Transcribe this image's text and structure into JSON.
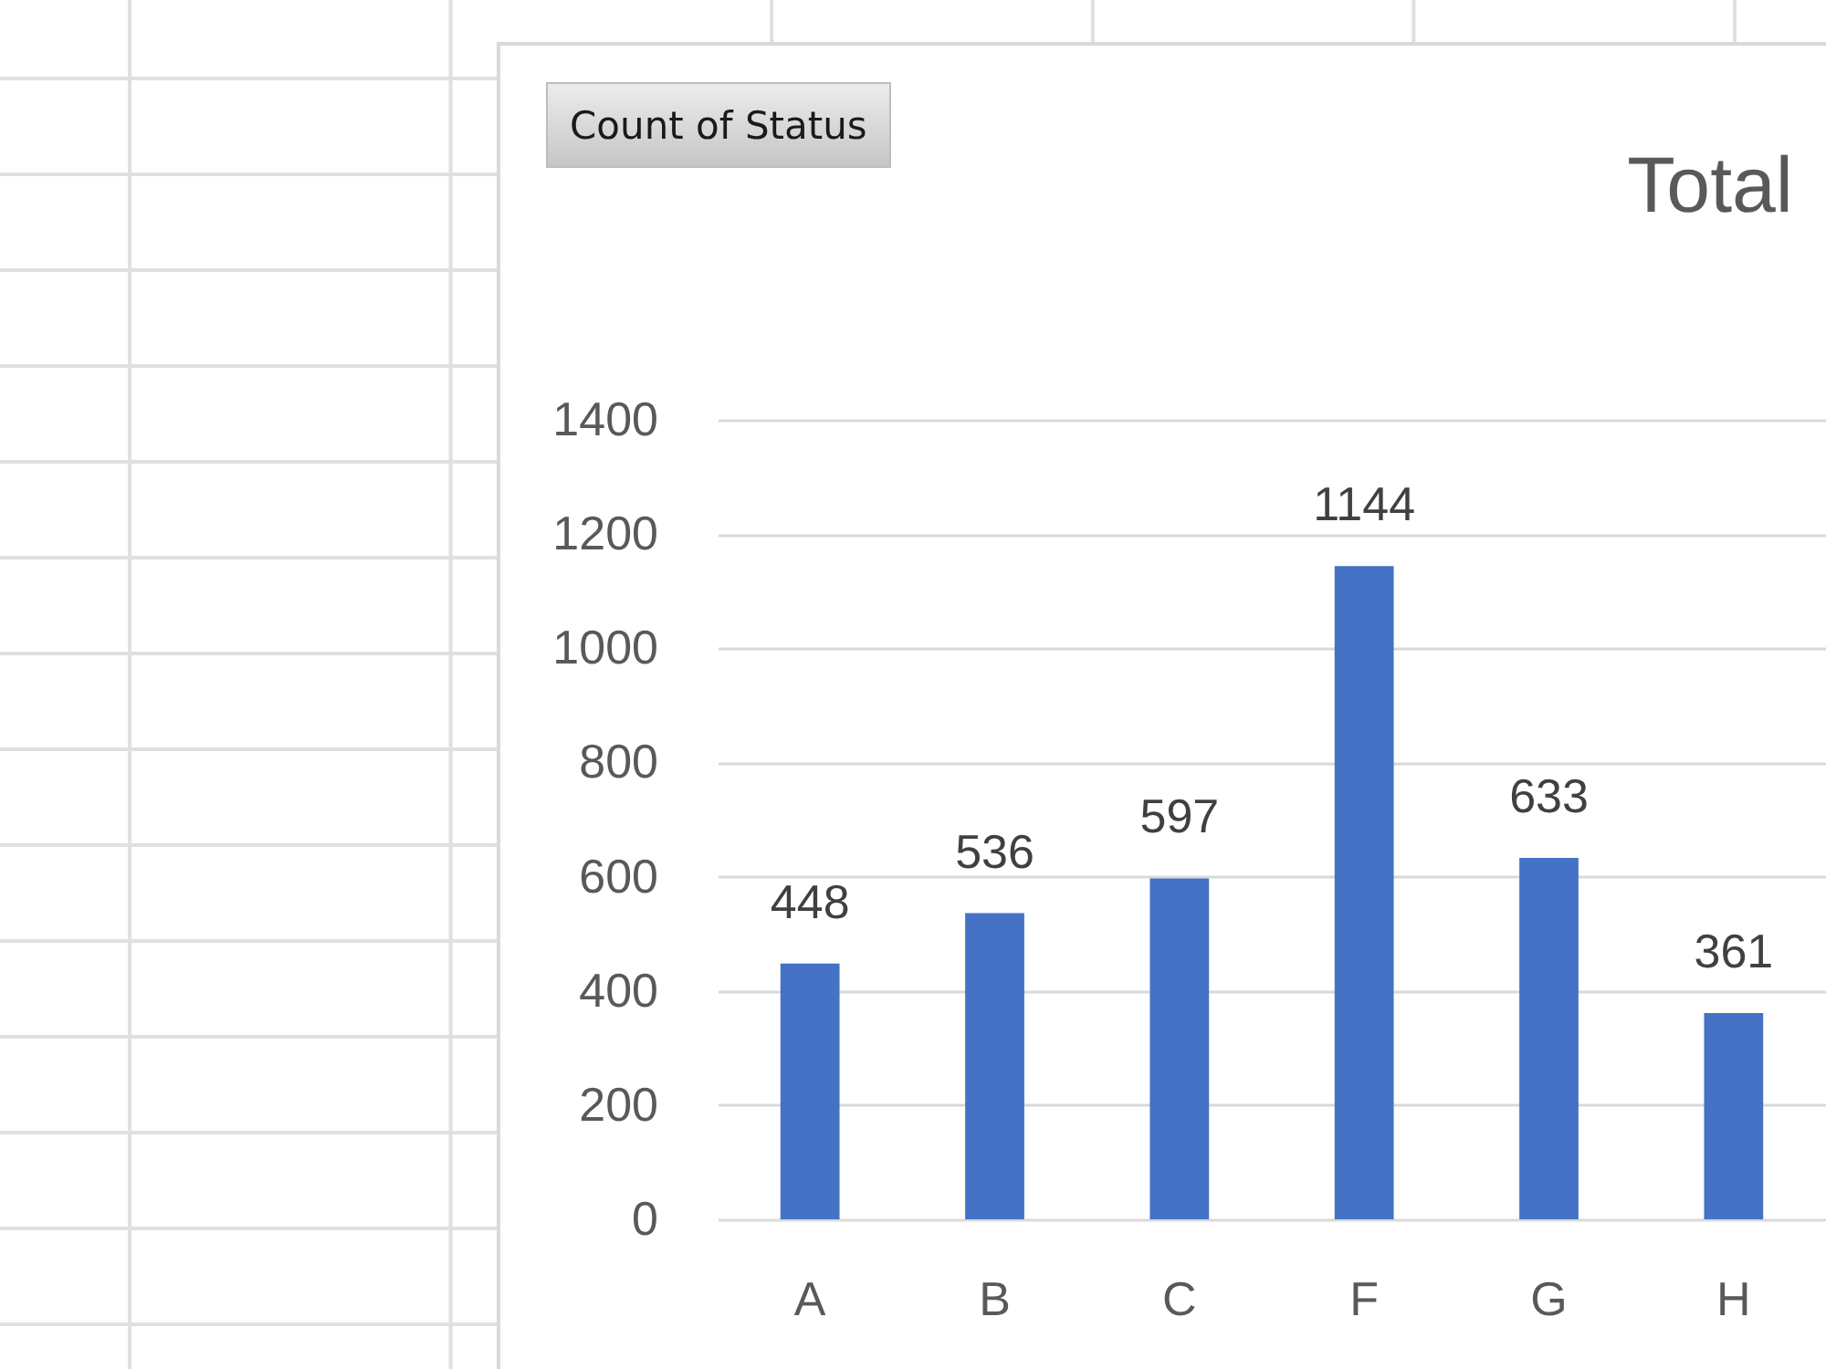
{
  "chart_data": {
    "type": "bar",
    "title": "Total",
    "annotations": [
      "Count of Status"
    ],
    "categories": [
      "A",
      "B",
      "C",
      "F",
      "G",
      "H"
    ],
    "values": [
      448,
      536,
      597,
      1144,
      633,
      361
    ],
    "color": "#4472c4",
    "ylim": [
      0,
      1400
    ],
    "yticks": [
      0,
      200,
      400,
      600,
      800,
      1000,
      1200,
      1400
    ],
    "grid": "y",
    "data_labels": true
  }
}
